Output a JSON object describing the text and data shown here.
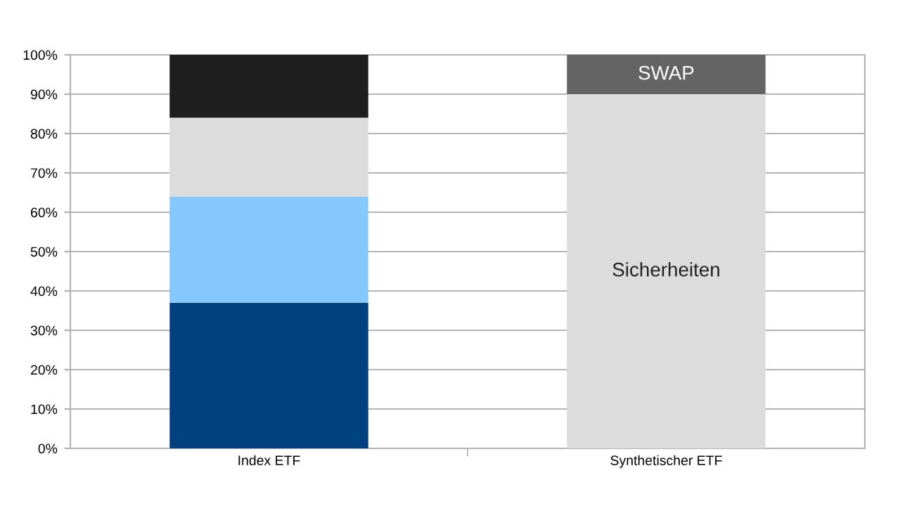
{
  "chart_data": {
    "type": "bar",
    "stacked": true,
    "categories": [
      "Index ETF",
      "Synthetischer ETF"
    ],
    "series": [
      {
        "color": "#00427f",
        "values": [
          37,
          null
        ]
      },
      {
        "color": "#84c8fc",
        "values": [
          27,
          null
        ]
      },
      {
        "color": "#dcdcdc",
        "values": [
          20,
          null
        ]
      },
      {
        "color": "#1e1e1e",
        "values": [
          16,
          null
        ]
      },
      {
        "name": "Sicherheiten",
        "color": "#dcdcdc",
        "values": [
          null,
          90
        ]
      },
      {
        "name": "SWAP",
        "color": "#646464",
        "values": [
          null,
          10
        ]
      }
    ],
    "ylim": [
      0,
      100
    ],
    "yticks": [
      {
        "value": 0,
        "label": "0%"
      },
      {
        "value": 10,
        "label": "10%"
      },
      {
        "value": 20,
        "label": "20%"
      },
      {
        "value": 30,
        "label": "30%"
      },
      {
        "value": 40,
        "label": "40%"
      },
      {
        "value": 50,
        "label": "50%"
      },
      {
        "value": 60,
        "label": "60%"
      },
      {
        "value": 70,
        "label": "70%"
      },
      {
        "value": 80,
        "label": "80%"
      },
      {
        "value": 90,
        "label": "90%"
      },
      {
        "value": 100,
        "label": "100%"
      }
    ],
    "grid": "y"
  }
}
